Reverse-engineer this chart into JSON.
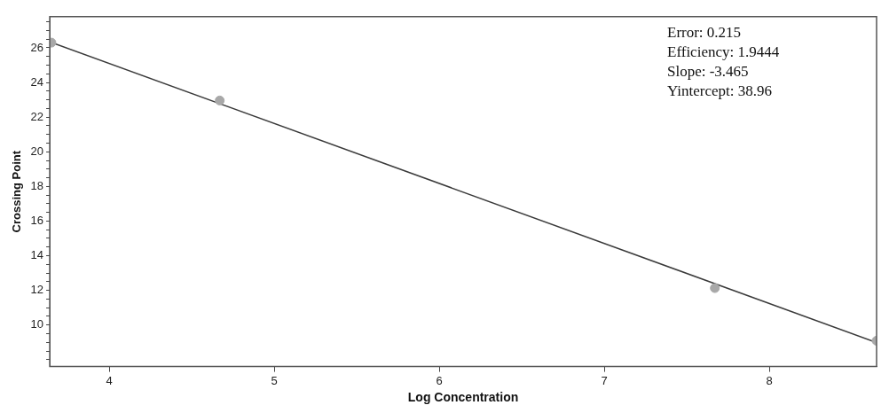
{
  "chart_data": {
    "type": "scatter",
    "xlabel": "Log Concentration",
    "ylabel": "Crossing Point",
    "annotations": [
      "Error: 0.215",
      "Efficiency: 1.9444",
      "Slope: -3.465",
      "Yintercept: 38.96"
    ],
    "series": [
      {
        "color": "#a8a8a8",
        "marker": "circle",
        "x": [
          3.65,
          4.67,
          7.67,
          8.65
        ],
        "values": [
          26.3,
          22.96,
          12.13,
          9.09
        ]
      },
      {
        "type": "line",
        "marker": "none",
        "color": "#3a3a3a",
        "x": [
          3.64,
          8.65
        ],
        "values": [
          26.35,
          8.99
        ]
      }
    ],
    "grid": false,
    "legend": false,
    "xlim": [
      3.64,
      8.65
    ],
    "xticks": [
      4,
      5,
      6,
      7,
      8
    ],
    "ylim": [
      7.6,
      27.8
    ],
    "yticks": [
      {
        "value": 8,
        "label": null
      },
      {
        "value": 8.5,
        "label": null
      },
      {
        "value": 9,
        "label": null
      },
      {
        "value": 9.5,
        "label": null
      },
      10,
      {
        "value": 10.5,
        "label": null
      },
      {
        "value": 11,
        "label": null
      },
      {
        "value": 11.5,
        "label": null
      },
      12,
      {
        "value": 12.5,
        "label": null
      },
      {
        "value": 13,
        "label": null
      },
      {
        "value": 13.5,
        "label": null
      },
      14,
      {
        "value": 14.5,
        "label": null
      },
      {
        "value": 15,
        "label": null
      },
      {
        "value": 15.5,
        "label": null
      },
      16,
      {
        "value": 16.5,
        "label": null
      },
      {
        "value": 17,
        "label": null
      },
      {
        "value": 17.5,
        "label": null
      },
      18,
      {
        "value": 18.5,
        "label": null
      },
      {
        "value": 19,
        "label": null
      },
      {
        "value": 19.5,
        "label": null
      },
      20,
      {
        "value": 20.5,
        "label": null
      },
      {
        "value": 21,
        "label": null
      },
      {
        "value": 21.5,
        "label": null
      },
      22,
      {
        "value": 22.5,
        "label": null
      },
      {
        "value": 23,
        "label": null
      },
      {
        "value": 23.5,
        "label": null
      },
      24,
      {
        "value": 24.5,
        "label": null
      },
      {
        "value": 25,
        "label": null
      },
      {
        "value": 25.5,
        "label": null
      },
      26,
      {
        "value": 26.5,
        "label": null
      },
      {
        "value": 27,
        "label": null
      },
      {
        "value": 27.5,
        "label": null
      }
    ]
  }
}
